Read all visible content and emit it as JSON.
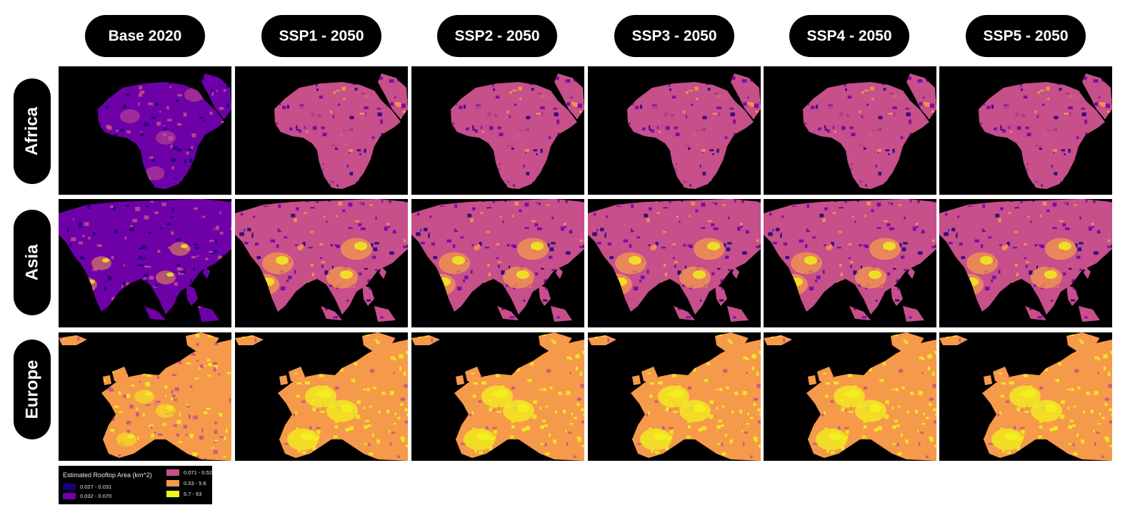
{
  "columns": [
    {
      "label": "Base 2020",
      "level": 0
    },
    {
      "label": "SSP1 - 2050",
      "level": 1
    },
    {
      "label": "SSP2 - 2050",
      "level": 1
    },
    {
      "label": "SSP3 - 2050",
      "level": 1
    },
    {
      "label": "SSP4 - 2050",
      "level": 1.1
    },
    {
      "label": "SSP5 - 2050",
      "level": 1
    }
  ],
  "rows": [
    {
      "label": "Africa",
      "region": "africa"
    },
    {
      "label": "Asia",
      "region": "asia"
    },
    {
      "label": "Europe",
      "region": "europe"
    }
  ],
  "legend": {
    "title": "Estimated Rooftop Area (km^2)",
    "items": [
      {
        "label": "0.027 - 0.031",
        "color": "#17007a"
      },
      {
        "label": "0.032 - 0.070",
        "color": "#6e00a8"
      },
      {
        "label": "0.071 - 0.52",
        "color": "#c74f8a"
      },
      {
        "label": "0.53 - 5.6",
        "color": "#f59a4a"
      },
      {
        "label": "5.7 - 63",
        "color": "#f2f21c"
      }
    ]
  },
  "colors": {
    "background": "#000000",
    "header_bg": "#000000",
    "header_text": "#ffffff"
  }
}
